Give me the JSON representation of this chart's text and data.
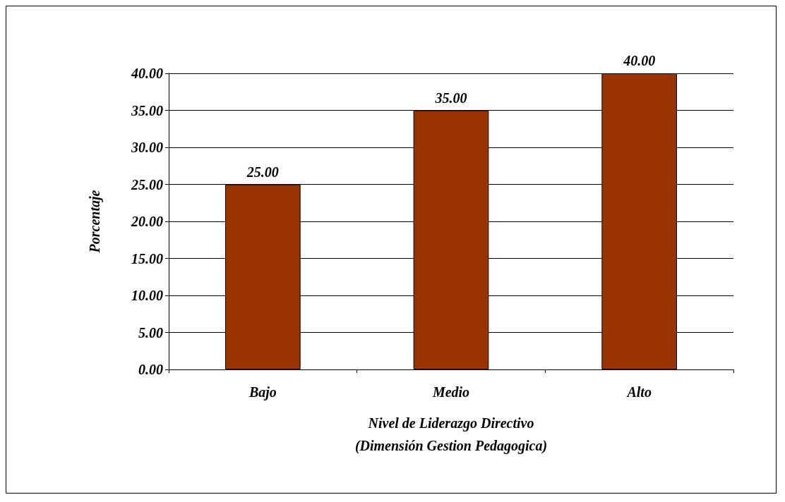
{
  "chart_data": {
    "type": "bar",
    "categories": [
      "Bajo",
      "Medio",
      "Alto"
    ],
    "values": [
      25,
      35,
      40
    ],
    "color": "#993300",
    "value_labels": [
      "25.00",
      "35.00",
      "40.00"
    ],
    "xlabel": "Nivel de Liderazgo Directivo\n(Dimensión Gestion Pedagogica)",
    "ylabel": "Porcentaje",
    "ylim": [
      0,
      40
    ],
    "yticks": [
      {
        "value": 0,
        "label": "0.00"
      },
      {
        "value": 5,
        "label": "5.00"
      },
      {
        "value": 10,
        "label": "10.00"
      },
      {
        "value": 15,
        "label": "15.00"
      },
      {
        "value": 20,
        "label": "20.00"
      },
      {
        "value": 25,
        "label": "25.00"
      },
      {
        "value": 30,
        "label": "30.00"
      },
      {
        "value": 35,
        "label": "35.00"
      },
      {
        "value": 40,
        "label": "40.00"
      }
    ],
    "grid": "y"
  }
}
